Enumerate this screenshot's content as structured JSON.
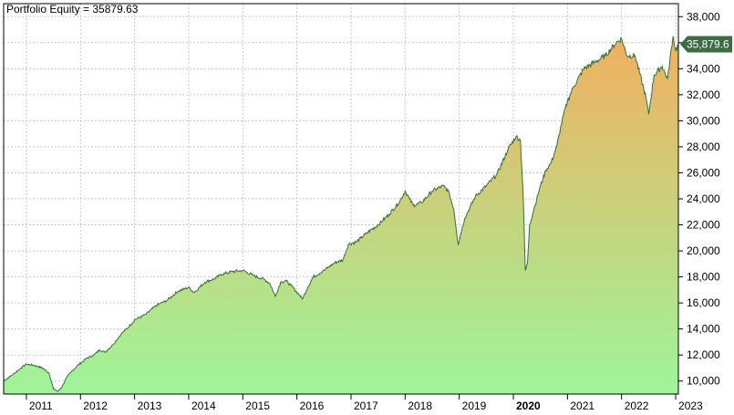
{
  "title": "Portfolio Equity = 35879.63",
  "chart_data": {
    "type": "area",
    "title": "Portfolio Equity = 35879.63",
    "xlabel": "",
    "ylabel": "",
    "xlim": [
      2010.58,
      2023.05
    ],
    "ylim": [
      9000,
      39000
    ],
    "grid": true,
    "y_ticks": [
      10000,
      12000,
      14000,
      16000,
      18000,
      20000,
      22000,
      24000,
      26000,
      28000,
      30000,
      32000,
      34000,
      36000,
      38000
    ],
    "y_tick_labels": [
      "10,000",
      "12,000",
      "14,000",
      "16,000",
      "18,000",
      "20,000",
      "22,000",
      "24,000",
      "26,000",
      "28,000",
      "30,000",
      "32,000",
      "34,000",
      "36,000",
      "38,000"
    ],
    "x_ticks": [
      2011,
      2012,
      2013,
      2014,
      2015,
      2016,
      2017,
      2018,
      2019,
      2020,
      2021,
      2022,
      2023
    ],
    "x_tick_labels": [
      "2011",
      "2012",
      "2013",
      "2014",
      "2015",
      "2016",
      "2017",
      "2018",
      "2019",
      "2020",
      "2021",
      "2022",
      "2023"
    ],
    "bold_x_tick": "2020",
    "last_value_label": "35,879.6",
    "last_value": 35879.6,
    "fill_colors": {
      "top": "#f0b060",
      "bottom": "#9ef59a"
    },
    "line_color": "#3a6e3a",
    "series": [
      {
        "x": [
          2010.58,
          2010.75,
          2010.9,
          2011.0,
          2011.15,
          2011.3,
          2011.42,
          2011.5,
          2011.58,
          2011.65,
          2011.75,
          2011.85,
          2011.95,
          2012.1,
          2012.25,
          2012.35,
          2012.45,
          2012.6,
          2012.75,
          2012.9,
          2013.0,
          2013.2,
          2013.4,
          2013.6,
          2013.8,
          2014.0,
          2014.1,
          2014.3,
          2014.5,
          2014.6,
          2014.8,
          2015.0,
          2015.2,
          2015.4,
          2015.5,
          2015.6,
          2015.7,
          2015.8,
          2015.9,
          2016.05,
          2016.1,
          2016.2,
          2016.3,
          2016.5,
          2016.7,
          2016.85,
          2016.95,
          2017.1,
          2017.3,
          2017.5,
          2017.7,
          2017.9,
          2018.0,
          2018.08,
          2018.15,
          2018.3,
          2018.5,
          2018.7,
          2018.8,
          2018.9,
          2018.98,
          2019.1,
          2019.3,
          2019.5,
          2019.7,
          2019.9,
          2020.05,
          2020.13,
          2020.18,
          2020.22,
          2020.26,
          2020.3,
          2020.4,
          2020.5,
          2020.6,
          2020.7,
          2020.8,
          2020.9,
          2021.0,
          2021.1,
          2021.3,
          2021.5,
          2021.7,
          2021.9,
          2022.0,
          2022.1,
          2022.25,
          2022.45,
          2022.5,
          2022.6,
          2022.75,
          2022.85,
          2022.95,
          2023.0,
          2023.05
        ],
        "y": [
          10000,
          10500,
          11000,
          11300,
          11200,
          11000,
          10600,
          9400,
          9200,
          9500,
          10300,
          10800,
          11200,
          11700,
          12000,
          12400,
          12200,
          12800,
          13600,
          14200,
          14700,
          15100,
          15800,
          16200,
          16900,
          17200,
          16800,
          17600,
          17900,
          18200,
          18400,
          18500,
          18100,
          17800,
          17500,
          16500,
          17600,
          17700,
          17300,
          16600,
          16300,
          17200,
          18000,
          18500,
          19100,
          19300,
          20500,
          20700,
          21400,
          22000,
          22800,
          23800,
          24600,
          24000,
          23500,
          23700,
          24600,
          25000,
          24600,
          23200,
          20500,
          22500,
          24200,
          25000,
          25900,
          27800,
          28800,
          28500,
          24500,
          18500,
          19000,
          22000,
          23500,
          25000,
          26200,
          26800,
          28000,
          30000,
          31500,
          32500,
          34000,
          34500,
          35000,
          36000,
          36300,
          35000,
          35000,
          31800,
          30500,
          33500,
          34200,
          33200,
          36500,
          35400,
          35879.6
        ]
      }
    ]
  }
}
